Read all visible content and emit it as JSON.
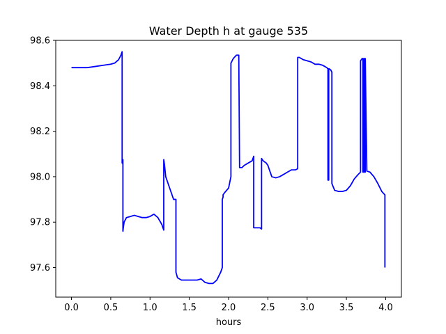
{
  "chart_data": {
    "type": "line",
    "title": "Water Depth h at gauge 535",
    "xlabel": "hours",
    "ylabel": "",
    "xlim": [
      -0.2,
      4.2
    ],
    "ylim": [
      97.47,
      98.6
    ],
    "x_ticks": [
      0.0,
      0.5,
      1.0,
      1.5,
      2.0,
      2.5,
      3.0,
      3.5,
      4.0
    ],
    "x_tick_labels": [
      "0.0",
      "0.5",
      "1.0",
      "1.5",
      "2.0",
      "2.5",
      "3.0",
      "3.5",
      "4.0"
    ],
    "y_ticks": [
      97.6,
      97.8,
      98.0,
      98.2,
      98.4,
      98.6
    ],
    "y_tick_labels": [
      "97.6",
      "97.8",
      "98.0",
      "98.2",
      "98.4",
      "98.6"
    ],
    "grid": false,
    "series": [
      {
        "color": "#0000ff",
        "x": [
          0.0,
          0.1,
          0.2,
          0.3,
          0.4,
          0.5,
          0.55,
          0.6,
          0.63,
          0.645,
          0.645,
          0.655,
          0.655,
          0.66,
          0.67,
          0.7,
          0.75,
          0.8,
          0.85,
          0.9,
          0.95,
          1.0,
          1.05,
          1.1,
          1.15,
          1.175,
          1.175,
          1.185,
          1.2,
          1.25,
          1.3,
          1.33,
          1.33,
          1.35,
          1.4,
          1.45,
          1.5,
          1.55,
          1.6,
          1.65,
          1.7,
          1.75,
          1.8,
          1.85,
          1.9,
          1.92,
          1.92,
          1.93,
          1.93,
          1.95,
          2.0,
          2.03,
          2.03,
          2.06,
          2.1,
          2.13,
          2.14,
          2.14,
          2.17,
          2.2,
          2.25,
          2.3,
          2.31,
          2.32,
          2.32,
          2.35,
          2.4,
          2.42,
          2.42,
          2.44,
          2.48,
          2.5,
          2.55,
          2.6,
          2.65,
          2.7,
          2.75,
          2.8,
          2.85,
          2.88,
          2.88,
          2.9,
          2.95,
          3.0,
          3.05,
          3.1,
          3.15,
          3.2,
          3.25,
          3.265,
          3.265,
          3.275,
          3.275,
          3.28,
          3.3,
          3.315,
          3.315,
          3.35,
          3.4,
          3.45,
          3.5,
          3.55,
          3.6,
          3.65,
          3.68,
          3.68,
          3.7,
          3.71,
          3.71,
          3.72,
          3.72,
          3.73,
          3.73,
          3.74,
          3.74,
          3.76,
          3.8,
          3.85,
          3.9,
          3.95,
          3.99,
          3.99
        ],
        "y": [
          98.48,
          98.48,
          98.48,
          98.485,
          98.49,
          98.495,
          98.5,
          98.515,
          98.535,
          98.55,
          98.06,
          98.075,
          97.76,
          97.775,
          97.8,
          97.82,
          97.825,
          97.83,
          97.825,
          97.82,
          97.82,
          97.825,
          97.835,
          97.82,
          97.79,
          97.765,
          98.075,
          98.05,
          98.0,
          97.95,
          97.9,
          97.9,
          97.58,
          97.555,
          97.545,
          97.545,
          97.545,
          97.545,
          97.545,
          97.55,
          97.535,
          97.53,
          97.53,
          97.545,
          97.58,
          97.6,
          97.9,
          97.91,
          97.92,
          97.93,
          97.95,
          98.0,
          98.5,
          98.52,
          98.535,
          98.535,
          98.04,
          98.04,
          98.04,
          98.05,
          98.06,
          98.07,
          98.08,
          98.09,
          97.775,
          97.775,
          97.775,
          97.77,
          98.08,
          98.07,
          98.06,
          98.05,
          98.0,
          97.995,
          98.0,
          98.01,
          98.02,
          98.03,
          98.03,
          98.035,
          98.525,
          98.525,
          98.515,
          98.51,
          98.505,
          98.495,
          98.495,
          98.49,
          98.48,
          98.475,
          97.985,
          97.985,
          98.475,
          98.475,
          98.47,
          98.46,
          97.97,
          97.94,
          97.935,
          97.935,
          97.94,
          97.96,
          97.99,
          98.01,
          98.02,
          98.51,
          98.52,
          98.52,
          98.02,
          98.02,
          98.52,
          98.52,
          98.02,
          98.02,
          98.52,
          98.025,
          98.02,
          98.0,
          97.97,
          97.935,
          97.92,
          97.6
        ]
      }
    ]
  }
}
